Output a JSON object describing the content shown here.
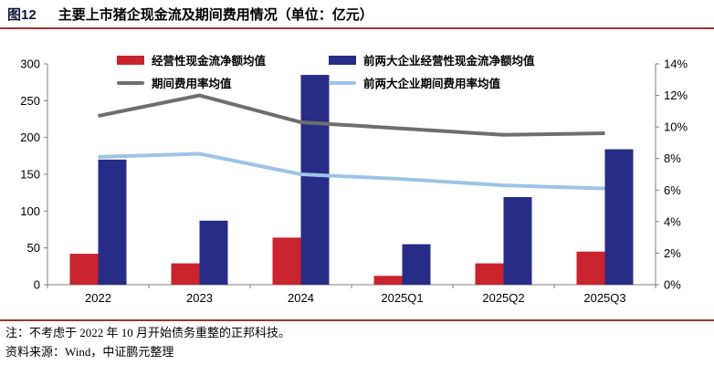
{
  "header": {
    "figure_label": "图12",
    "title": "主要上市猪企现金流及期间费用情况（单位：亿元）"
  },
  "colors": {
    "rule_red": "#9c3434",
    "bar_red": "#c9232d",
    "bar_navy": "#272c86",
    "line_gray": "#6e6e6e",
    "line_lightblue": "#9dc3e6",
    "axis_gray": "#7f7f7f"
  },
  "legend": [
    {
      "label": "经营性现金流净额均值",
      "type": "bar",
      "color": "#c9232d"
    },
    {
      "label": "前两大企业经营性现金流净额均值",
      "type": "bar",
      "color": "#272c86"
    },
    {
      "label": "期间费用率均值",
      "type": "line",
      "color": "#6e6e6e"
    },
    {
      "label": "前两大企业期间费用率均值",
      "type": "line",
      "color": "#9dc3e6"
    }
  ],
  "chart_data": {
    "type": "bar",
    "subtype": "bar-line combo, dual axis",
    "categories": [
      "2022",
      "2023",
      "2024",
      "2025Q1",
      "2025Q2",
      "2025Q3"
    ],
    "bar_series": [
      {
        "name": "经营性现金流净额均值",
        "axis": "left",
        "color": "#c9232d",
        "values": [
          42,
          29,
          64,
          12,
          29,
          45
        ]
      },
      {
        "name": "前两大企业经营性现金流净额均值",
        "axis": "left",
        "color": "#272c86",
        "values": [
          170,
          87,
          285,
          55,
          119,
          184
        ]
      }
    ],
    "line_series": [
      {
        "name": "期间费用率均值",
        "axis": "right",
        "color": "#6e6e6e",
        "values": [
          10.7,
          12.0,
          10.3,
          9.9,
          9.5,
          9.6
        ]
      },
      {
        "name": "前两大企业期间费用率均值",
        "axis": "right",
        "color": "#9dc3e6",
        "values": [
          8.1,
          8.3,
          7.0,
          6.7,
          6.3,
          6.1
        ]
      }
    ],
    "left_axis": {
      "min": 0,
      "max": 300,
      "step": 50,
      "ticks": [
        "0",
        "50",
        "100",
        "150",
        "200",
        "250",
        "300"
      ]
    },
    "right_axis": {
      "min": 0,
      "max": 14,
      "step": 2,
      "ticks": [
        "0%",
        "2%",
        "4%",
        "6%",
        "8%",
        "10%",
        "12%",
        "14%"
      ]
    },
    "grid": false,
    "legend_position": "top"
  },
  "footer": {
    "note": "注：不考虑于 2022 年 10 月开始债务重整的正邦科技。",
    "source": "资料来源：Wind，中证鹏元整理"
  }
}
